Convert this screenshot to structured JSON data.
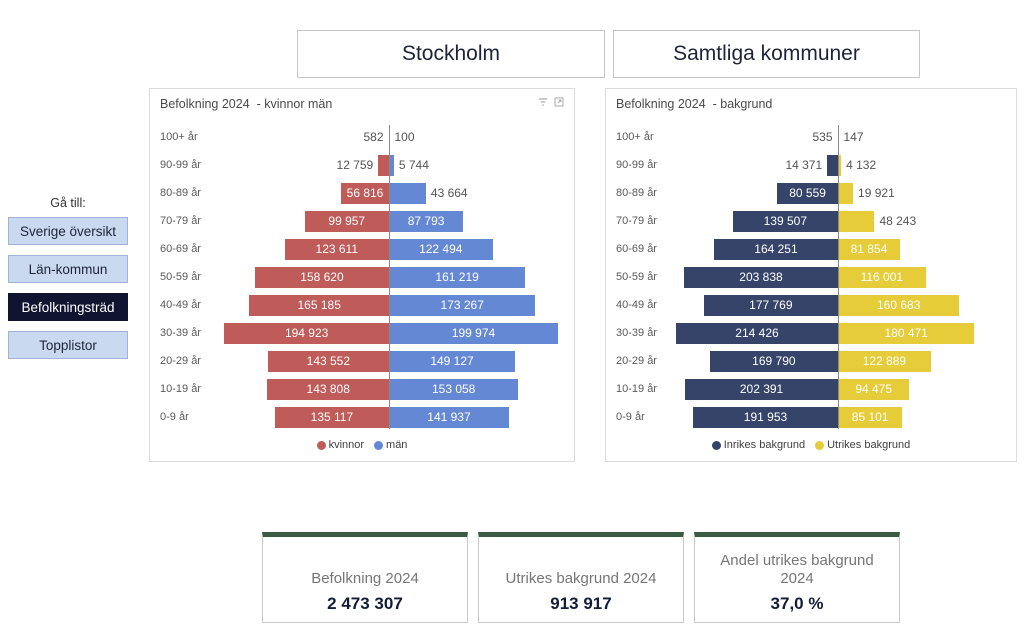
{
  "header": {
    "region_buttons": [
      {
        "label": "Stockholm"
      },
      {
        "label": "Samtliga kommuner"
      }
    ]
  },
  "nav": {
    "label": "Gå till:",
    "items": [
      {
        "label": "Sverige översikt",
        "active": false
      },
      {
        "label": "Län-kommun",
        "active": false
      },
      {
        "label": "Befolkningsträd",
        "active": true
      },
      {
        "label": "Topplistor",
        "active": false
      }
    ]
  },
  "chart_data": [
    {
      "type": "bar",
      "subtype": "population-pyramid",
      "title": "Befolkning 2024  - kvinnor män",
      "categories": [
        "100+ år",
        "90-99 år",
        "80-89 år",
        "70-79 år",
        "60-69 år",
        "50-59 år",
        "40-49 år",
        "30-39 år",
        "20-29 år",
        "10-19 år",
        "0-9 år"
      ],
      "series": [
        {
          "name": "kvinnor",
          "side": "left",
          "color": "#BF5B58",
          "values": [
            582,
            12759,
            56816,
            99957,
            123611,
            158620,
            165185,
            194923,
            143552,
            143808,
            135117
          ]
        },
        {
          "name": "män",
          "side": "right",
          "color": "#6588D5",
          "values": [
            100,
            5744,
            43664,
            87793,
            122494,
            161219,
            173267,
            199974,
            149127,
            153058,
            141937
          ]
        }
      ],
      "xmax": 199974,
      "legend_position": "bottom",
      "value_label_format": "space-grouped",
      "grid": false
    },
    {
      "type": "bar",
      "subtype": "population-pyramid",
      "title": "Befolkning 2024  - bakgrund",
      "categories": [
        "100+ år",
        "90-99 år",
        "80-89 år",
        "70-79 år",
        "60-69 år",
        "50-59 år",
        "40-49 år",
        "30-39 år",
        "20-29 år",
        "10-19 år",
        "0-9 år"
      ],
      "series": [
        {
          "name": "Inrikes bakgrund",
          "side": "left",
          "color": "#364469",
          "values": [
            535,
            14371,
            80559,
            139507,
            164251,
            203838,
            177769,
            214426,
            169790,
            202391,
            191953
          ]
        },
        {
          "name": "Utrikes bakgrund",
          "side": "right",
          "color": "#E5CC38",
          "values": [
            147,
            4132,
            19921,
            48243,
            81854,
            116001,
            160683,
            180471,
            122889,
            94475,
            85101
          ]
        }
      ],
      "xmax": 214426,
      "legend_position": "bottom",
      "value_label_format": "space-grouped",
      "grid": false
    }
  ],
  "cards": [
    {
      "label": "Befolkning 2024",
      "value": "2 473 307"
    },
    {
      "label": "Utrikes bakgrund 2024",
      "value": "913 917"
    },
    {
      "label": "Andel utrikes bakgrund 2024",
      "value": "37,0 %"
    }
  ],
  "icons": {
    "filter": "filter-icon",
    "focus_mode": "focus-mode-icon"
  },
  "colors": {
    "kvinnor": "#BF5B58",
    "man": "#6588D5",
    "inrikes": "#364469",
    "utrikes": "#E5CC38",
    "nav_bg": "#C9D9F0",
    "nav_border": "#9DB6D8",
    "nav_active_bg": "#101431",
    "card_accent": "#3A5A44",
    "header_text": "#1E2438",
    "axis_line": "#8A8A8A"
  }
}
